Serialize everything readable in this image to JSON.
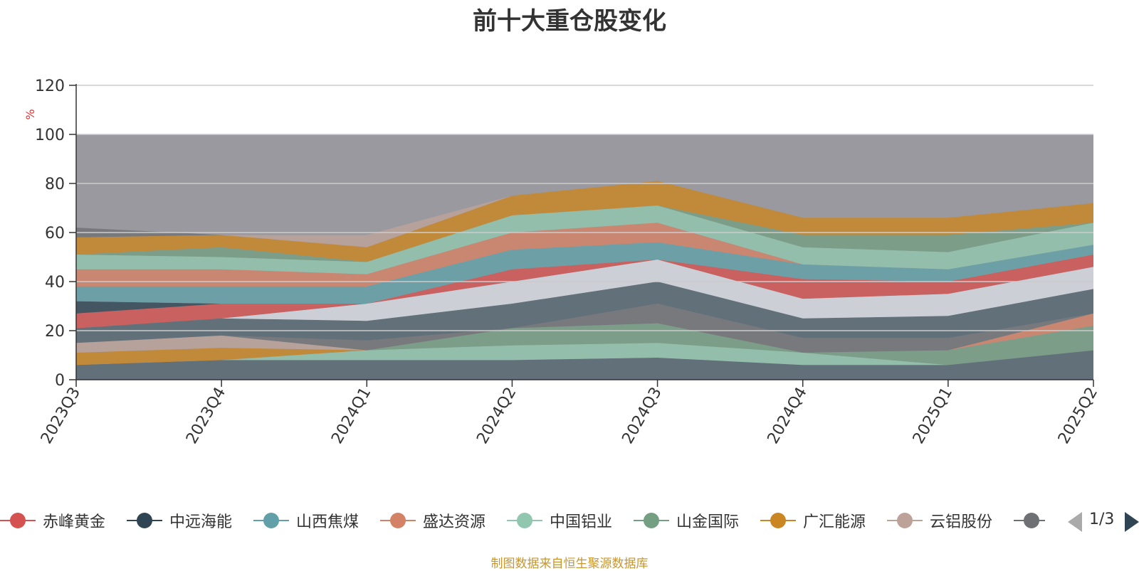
{
  "title": "前十大重仓股变化",
  "source": "制图数据来自恒生聚源数据库",
  "pager": {
    "text": "1/3"
  },
  "colors": {
    "background_area": "#7f8087",
    "grid": "#cccccc",
    "axis": "#333333",
    "unit": "#e03030",
    "source": "#c9962d"
  },
  "chart_data": {
    "type": "area",
    "stacked": true,
    "title": "前十大重仓股变化",
    "ylabel": "%",
    "ylim": [
      0,
      120
    ],
    "yticks": [
      0,
      20,
      40,
      60,
      80,
      100,
      120
    ],
    "grid": true,
    "legend_position": "bottom",
    "categories": [
      "2023Q3",
      "2023Q4",
      "2024Q1",
      "2024Q2",
      "2024Q3",
      "2024Q4",
      "2025Q1",
      "2025Q2"
    ],
    "total": 100,
    "series": [
      {
        "name": "赤峰黄金",
        "color": "#d45350",
        "icon": "circle",
        "values": [
          6,
          6,
          0,
          5,
          0,
          8,
          5,
          5
        ]
      },
      {
        "name": "中远海能",
        "color": "#2f4554",
        "icon": "circle",
        "values": [
          5,
          0,
          0,
          0,
          0,
          0,
          0,
          0
        ]
      },
      {
        "name": "山西焦煤",
        "color": "#61a0a8",
        "icon": "circle",
        "values": [
          6,
          7,
          7,
          8,
          7,
          6,
          5,
          4
        ]
      },
      {
        "name": "盛达资源",
        "color": "#d48265",
        "icon": "circle",
        "values": [
          7,
          7,
          5,
          7,
          8,
          0,
          0,
          0
        ]
      },
      {
        "name": "中国铝业",
        "color": "#91c7ae",
        "icon": "circle",
        "values": [
          6,
          5,
          5,
          7,
          7,
          7,
          7,
          9
        ]
      },
      {
        "name": "山金国际",
        "color": "#749f83",
        "icon": "circle",
        "values": [
          0,
          4,
          0,
          0,
          0,
          5,
          7,
          0
        ]
      },
      {
        "name": "广汇能源",
        "color": "#ca8622",
        "icon": "circle",
        "values": [
          7,
          5,
          6,
          8,
          10,
          7,
          7,
          8
        ]
      },
      {
        "name": "云铝股份",
        "color": "#bda29a",
        "icon": "circle",
        "values": [
          0,
          0,
          5,
          0,
          0,
          0,
          0,
          0
        ]
      },
      {
        "name": "",
        "color": "#6e7074",
        "icon": "circle",
        "values": [
          4,
          0,
          0,
          0,
          0,
          0,
          0,
          0
        ]
      }
    ],
    "lower_layers": [
      {
        "color": "#546570",
        "values": [
          6,
          8,
          8,
          8,
          9,
          6,
          6,
          12
        ]
      },
      {
        "color": "#91c7ae",
        "values": [
          0,
          0,
          4,
          6,
          6,
          5,
          0,
          0
        ]
      },
      {
        "color": "#749f83",
        "values": [
          0,
          0,
          0,
          7,
          8,
          0,
          6,
          10
        ]
      },
      {
        "color": "#ca8622",
        "values": [
          5,
          5,
          0,
          0,
          0,
          0,
          0,
          0
        ]
      },
      {
        "color": "#d48265",
        "values": [
          0,
          0,
          0,
          0,
          0,
          0,
          0,
          5
        ]
      },
      {
        "color": "#bda29a",
        "values": [
          4,
          5,
          0,
          0,
          0,
          0,
          0,
          0
        ]
      },
      {
        "color": "#6e7074",
        "values": [
          0,
          0,
          4,
          0,
          8,
          6,
          5,
          0
        ]
      },
      {
        "color": "#546570",
        "values": [
          6,
          7,
          8,
          10,
          9,
          8,
          9,
          10
        ]
      },
      {
        "color": "#d9dce3",
        "values": [
          0,
          0,
          7,
          9,
          9,
          8,
          9,
          9
        ]
      }
    ]
  },
  "legend": {
    "items": [
      {
        "label": "赤峰黄金",
        "color": "#d45350"
      },
      {
        "label": "中远海能",
        "color": "#2f4554"
      },
      {
        "label": "山西焦煤",
        "color": "#61a0a8"
      },
      {
        "label": "盛达资源",
        "color": "#d48265"
      },
      {
        "label": "中国铝业",
        "color": "#91c7ae"
      },
      {
        "label": "山金国际",
        "color": "#749f83"
      },
      {
        "label": "广汇能源",
        "color": "#ca8622"
      },
      {
        "label": "云铝股份",
        "color": "#bda29a"
      },
      {
        "label": "",
        "color": "#6e7074"
      }
    ]
  }
}
